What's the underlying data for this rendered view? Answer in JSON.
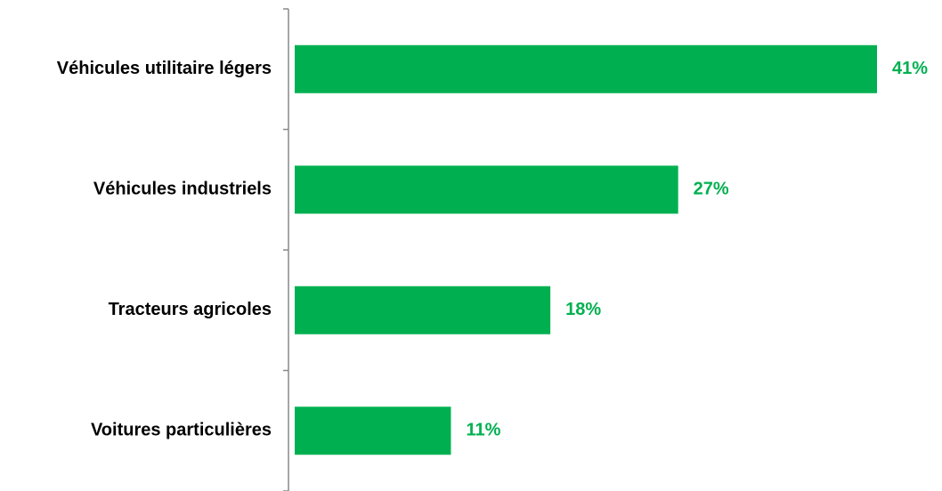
{
  "chart_data": {
    "type": "hbar",
    "categories": [
      "Véhicules utilitaire légers",
      "Véhicules industriels",
      "Tracteurs agricoles",
      "Voitures particulières"
    ],
    "values": [
      41,
      27,
      18,
      11
    ],
    "value_labels": [
      "41%",
      "27%",
      "18%",
      "11%"
    ],
    "color": "#00b050"
  }
}
